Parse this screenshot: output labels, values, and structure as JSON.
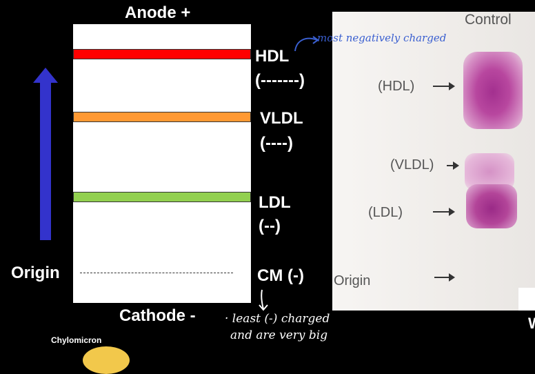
{
  "labels": {
    "anode": "Anode +",
    "cathode": "Cathode -",
    "origin": "Origin",
    "chylomicron": "Chylomicron"
  },
  "bands": [
    {
      "name": "HDL",
      "charge": "(-------)",
      "color": "#ff0000"
    },
    {
      "name": "VLDL",
      "charge": "(----)",
      "color": "#ff9933"
    },
    {
      "name": "LDL",
      "charge": "(--)",
      "color": "#92d050"
    },
    {
      "name": "CM (-)",
      "charge": "",
      "color": ""
    }
  ],
  "colors": {
    "arrow": "#3333cc",
    "band_stroke": "#333333",
    "photo_bg": "#f3f1ef",
    "stain": "#b0409a"
  },
  "photo": {
    "title": "Control",
    "labels": [
      "(HDL)",
      "(VLDL)",
      "(LDL)",
      "Origin"
    ]
  },
  "annotations": {
    "hdl_note": "most negatively charged",
    "cm_note_1": "· least (-) charged",
    "cm_note_2": "and are very big"
  }
}
